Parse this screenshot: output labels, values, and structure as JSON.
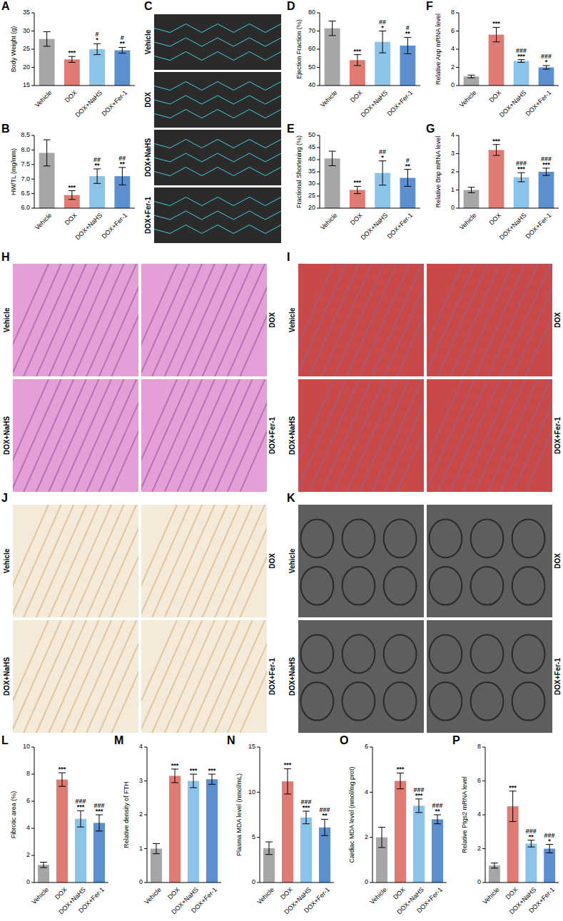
{
  "chart_data": [
    {
      "type": "bar",
      "label": "A",
      "ylabel": "Body Weight (g)",
      "categories": [
        "Vehicle",
        "DOX",
        "DOX+NaHS",
        "DOX+Fer-1"
      ],
      "values": [
        27.8,
        22.2,
        25.0,
        24.7
      ],
      "errors": [
        2.0,
        0.8,
        1.5,
        0.8
      ],
      "colors": [
        "#a6a6a6",
        "#e07b74",
        "#8cc3e8",
        "#5b8fcf"
      ],
      "ylim": [
        15,
        35
      ],
      "yticks": [
        15,
        20,
        25,
        30,
        35
      ],
      "annotations": [
        [],
        [
          "***"
        ],
        [
          "#",
          "*"
        ],
        [
          "#",
          "**"
        ]
      ]
    },
    {
      "type": "bar",
      "label": "B",
      "ylabel": "HW/TL (mg/mm)",
      "categories": [
        "Vehicle",
        "DOX",
        "DOX+NaHS",
        "DOX+Fer-1"
      ],
      "values": [
        7.9,
        6.45,
        7.1,
        7.1
      ],
      "errors": [
        0.45,
        0.15,
        0.25,
        0.3
      ],
      "colors": [
        "#a6a6a6",
        "#e07b74",
        "#8cc3e8",
        "#5b8fcf"
      ],
      "ylim": [
        6,
        8.5
      ],
      "yticks": [
        {
          "value": 6,
          "label": "6.0"
        },
        {
          "value": 6.5,
          "label": "6.5"
        },
        {
          "value": 7,
          "label": "7.0"
        },
        {
          "value": 7.5,
          "label": "7.5"
        },
        {
          "value": 8,
          "label": "8.0"
        },
        {
          "value": 8.5,
          "label": "8.5"
        }
      ],
      "annotations": [
        [],
        [
          "***"
        ],
        [
          "##",
          "**"
        ],
        [
          "##",
          "**"
        ]
      ]
    },
    {
      "type": "bar",
      "label": "D",
      "ylabel": "Ejection Fraction (%)",
      "categories": [
        "Vehicle",
        "DOX",
        "DOX+NaHS",
        "DOX+Fer-1"
      ],
      "values": [
        71.5,
        54,
        64,
        62
      ],
      "errors": [
        4,
        3,
        6,
        4.5
      ],
      "colors": [
        "#a6a6a6",
        "#e07b74",
        "#8cc3e8",
        "#5b8fcf"
      ],
      "ylim": [
        40,
        80
      ],
      "yticks": [
        40,
        50,
        60,
        70,
        80
      ],
      "annotations": [
        [],
        [
          "***"
        ],
        [
          "##",
          "*"
        ],
        [
          "#",
          "**"
        ]
      ]
    },
    {
      "type": "bar",
      "label": "E",
      "ylabel": "Fractional Shortening (%)",
      "categories": [
        "Vehicle",
        "DOX",
        "DOX+NaHS",
        "DOX+Fer-1"
      ],
      "values": [
        40.5,
        27.5,
        34.5,
        32.5
      ],
      "errors": [
        3,
        1.5,
        5,
        3.5
      ],
      "colors": [
        "#a6a6a6",
        "#e07b74",
        "#8cc3e8",
        "#5b8fcf"
      ],
      "ylim": [
        20,
        50
      ],
      "yticks": [
        20,
        25,
        30,
        35,
        40,
        45,
        50
      ],
      "annotations": [
        [],
        [
          "***"
        ],
        [
          "##",
          "*"
        ],
        [
          "#",
          "**"
        ]
      ]
    },
    {
      "type": "bar",
      "label": "F",
      "ylabel": "Relative Anp mRNA level",
      "categories": [
        "Vehicle",
        "DOX",
        "DOX+NaHS",
        "DOX+Fer-1"
      ],
      "values": [
        1.0,
        5.6,
        2.7,
        2.0
      ],
      "errors": [
        0.15,
        0.8,
        0.15,
        0.2
      ],
      "colors": [
        "#a6a6a6",
        "#e07b74",
        "#8cc3e8",
        "#5b8fcf"
      ],
      "ylim": [
        0,
        8
      ],
      "yticks": [
        0,
        2,
        4,
        6,
        8
      ],
      "annotations": [
        [],
        [
          "***"
        ],
        [
          "###",
          "***"
        ],
        [
          "###",
          "*"
        ]
      ]
    },
    {
      "type": "bar",
      "label": "G",
      "ylabel": "Relative Bnp mRNA level",
      "categories": [
        "Vehicle",
        "DOX",
        "DOX+NaHS",
        "DOX+Fer-1"
      ],
      "values": [
        1.0,
        3.2,
        1.7,
        2.0
      ],
      "errors": [
        0.15,
        0.3,
        0.25,
        0.2
      ],
      "colors": [
        "#a6a6a6",
        "#e07b74",
        "#8cc3e8",
        "#5b8fcf"
      ],
      "ylim": [
        0,
        4
      ],
      "yticks": [
        0,
        1,
        2,
        3,
        4
      ],
      "annotations": [
        [],
        [
          "***"
        ],
        [
          "###",
          "***"
        ],
        [
          "###",
          "***"
        ]
      ]
    },
    {
      "type": "bar",
      "label": "L",
      "ylabel": "Fibrotic area (%)",
      "categories": [
        "Vehicle",
        "DOX",
        "DOX+NaHS",
        "DOX+Fer-1"
      ],
      "values": [
        1.3,
        7.6,
        4.7,
        4.4
      ],
      "errors": [
        0.2,
        0.5,
        0.6,
        0.6
      ],
      "colors": [
        "#a6a6a6",
        "#e07b74",
        "#8cc3e8",
        "#5b8fcf"
      ],
      "ylim": [
        0,
        10
      ],
      "yticks": [
        0,
        2,
        4,
        6,
        8,
        10
      ],
      "annotations": [
        [],
        [
          "***"
        ],
        [
          "###",
          "***"
        ],
        [
          "###",
          "***"
        ]
      ]
    },
    {
      "type": "bar",
      "label": "M",
      "ylabel": "Relative density of FTH",
      "categories": [
        "Vehicle",
        "DOX",
        "DOX+NaHS",
        "DOX+Fer-1"
      ],
      "values": [
        1.0,
        3.15,
        3.0,
        3.05
      ],
      "errors": [
        0.15,
        0.2,
        0.2,
        0.15
      ],
      "colors": [
        "#a6a6a6",
        "#e07b74",
        "#8cc3e8",
        "#5b8fcf"
      ],
      "ylim": [
        0,
        4
      ],
      "yticks": [
        0,
        1,
        2,
        3,
        4
      ],
      "annotations": [
        [],
        [
          "***"
        ],
        [
          "***"
        ],
        [
          "***"
        ]
      ]
    },
    {
      "type": "bar",
      "label": "N",
      "ylabel": "Plasma MDA level (nmol/mL)",
      "categories": [
        "Vehicle",
        "DOX",
        "DOX+NaHS",
        "DOX+Fer-1"
      ],
      "values": [
        3.8,
        11.2,
        7.2,
        6.1
      ],
      "errors": [
        0.7,
        1.4,
        0.7,
        0.9
      ],
      "colors": [
        "#a6a6a6",
        "#e07b74",
        "#8cc3e8",
        "#5b8fcf"
      ],
      "ylim": [
        0,
        15
      ],
      "yticks": [
        0,
        5,
        10,
        15
      ],
      "annotations": [
        [],
        [
          "***"
        ],
        [
          "###",
          "***"
        ],
        [
          "###",
          "**"
        ]
      ]
    },
    {
      "type": "bar",
      "label": "O",
      "ylabel": "Cardiac MDA level (nmol/mg prot)",
      "categories": [
        "Vehicle",
        "DOX",
        "DOX+NaHS",
        "DOX+Fer-1"
      ],
      "values": [
        2.0,
        4.5,
        3.4,
        2.8
      ],
      "errors": [
        0.45,
        0.35,
        0.3,
        0.2
      ],
      "colors": [
        "#a6a6a6",
        "#e07b74",
        "#8cc3e8",
        "#5b8fcf"
      ],
      "ylim": [
        0,
        6
      ],
      "yticks": [
        0,
        2,
        4,
        6
      ],
      "annotations": [
        [],
        [
          "***"
        ],
        [
          "###",
          "***"
        ],
        [
          "###",
          "**"
        ]
      ]
    },
    {
      "type": "bar",
      "label": "P",
      "ylabel": "Relative Ptgs2 mRNA level",
      "categories": [
        "Vehicle",
        "DOX",
        "DOX+NaHS",
        "DOX+Fer-1"
      ],
      "values": [
        1.0,
        4.5,
        2.3,
        2.0
      ],
      "errors": [
        0.15,
        0.9,
        0.2,
        0.25
      ],
      "colors": [
        "#a6a6a6",
        "#e07b74",
        "#8cc3e8",
        "#5b8fcf"
      ],
      "ylim": [
        0,
        8
      ],
      "yticks": [
        0,
        2,
        4,
        6,
        8
      ],
      "annotations": [
        [],
        [
          "***"
        ],
        [
          "###",
          "**"
        ],
        [
          "###",
          "*"
        ]
      ]
    }
  ],
  "image_panels": [
    {
      "label": "C",
      "images": [
        "Vehicle",
        "DOX",
        "DOX+NaHS",
        "DOX+Fer-1"
      ]
    },
    {
      "label": "H",
      "images": [
        "Vehicle",
        "DOX",
        "DOX+NaHS",
        "DOX+Fer-1"
      ]
    },
    {
      "label": "I",
      "images": [
        "Vehicle",
        "DOX",
        "DOX+NaHS",
        "DOX+Fer-1"
      ]
    },
    {
      "label": "J",
      "images": [
        "Vehicle",
        "DOX",
        "DOX+NaHS",
        "DOX+Fer-1"
      ]
    },
    {
      "label": "K",
      "images": [
        "Vehicle",
        "DOX",
        "DOX+NaHS",
        "DOX+Fer-1"
      ]
    }
  ]
}
